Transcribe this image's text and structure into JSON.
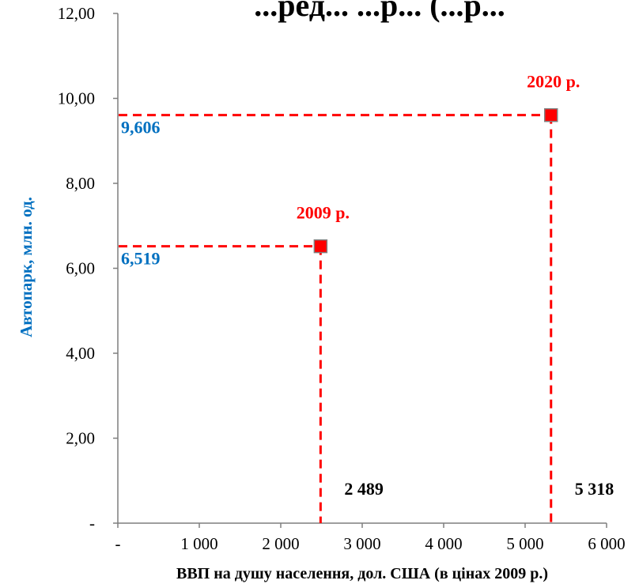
{
  "chart_data": {
    "type": "scatter",
    "title": "...ред... ...р... (...р...",
    "xlabel": "ВВП на душу населення, дол. США (в цінах 2009 р.)",
    "ylabel": "Автопарк, млн. од.",
    "xlim": [
      0,
      6000
    ],
    "ylim": [
      0,
      12
    ],
    "x_ticks": [
      0,
      1000,
      2000,
      3000,
      4000,
      5000,
      6000
    ],
    "x_tick_labels": [
      "-",
      "1 000",
      "2 000",
      "3 000",
      "4 000",
      "5 000",
      "6 000"
    ],
    "y_ticks": [
      0,
      2,
      4,
      6,
      8,
      10,
      12
    ],
    "y_tick_labels": [
      "-",
      "2,00",
      "4,00",
      "6,00",
      "8,00",
      "10,00",
      "12,00"
    ],
    "grid": false,
    "points": [
      {
        "label": "2009 р.",
        "x": 2489,
        "y": 6.519,
        "x_label": "2 489",
        "y_label": "6,519"
      },
      {
        "label": "2020 р.",
        "x": 5318,
        "y": 9.606,
        "x_label": "5 318",
        "y_label": "9,606"
      }
    ],
    "colors": {
      "marker": "#ff0000",
      "marker_border": "#808080",
      "guide_line": "#ff0000",
      "year_label": "#ff0000",
      "y_value_label": "#0070c0",
      "ylabel": "#0070c0",
      "axis": "#7f7f7f"
    }
  }
}
